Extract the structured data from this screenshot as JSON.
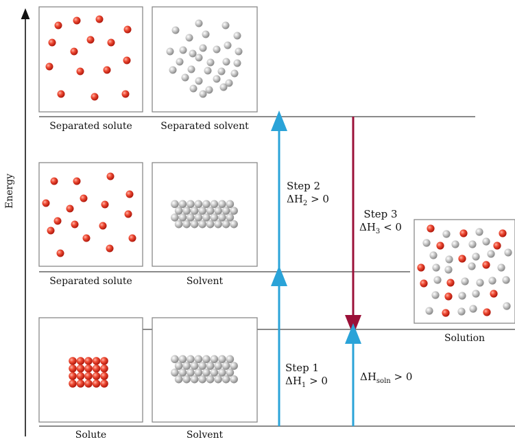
{
  "axis": {
    "label": "Energy"
  },
  "states": {
    "top": {
      "solute_label": "Separated solute",
      "solvent_label": "Separated solvent"
    },
    "middle": {
      "solute_label": "Separated solute",
      "solvent_label": "Solvent"
    },
    "bottom": {
      "solute_label": "Solute",
      "solvent_label": "Solvent"
    },
    "solution": {
      "label": "Solution"
    }
  },
  "steps": {
    "step1": {
      "title": "Step 1",
      "delta": "ΔH",
      "sub": "1",
      "relation": " > 0"
    },
    "step2": {
      "title": "Step 2",
      "delta": "ΔH",
      "sub": "2",
      "relation": " > 0"
    },
    "step3": {
      "title": "Step 3",
      "delta": "ΔH",
      "sub": "3",
      "relation": " < 0"
    },
    "soln": {
      "delta": "ΔH",
      "sub": "soln",
      "relation": " > 0"
    }
  },
  "colors": {
    "solute": "#e8412c",
    "solvent": "#bdbdbd",
    "endothermic_arrow": "#2aa3d8",
    "exothermic_arrow": "#9b1038",
    "level_line": "#444444",
    "box_border": "#888888"
  }
}
